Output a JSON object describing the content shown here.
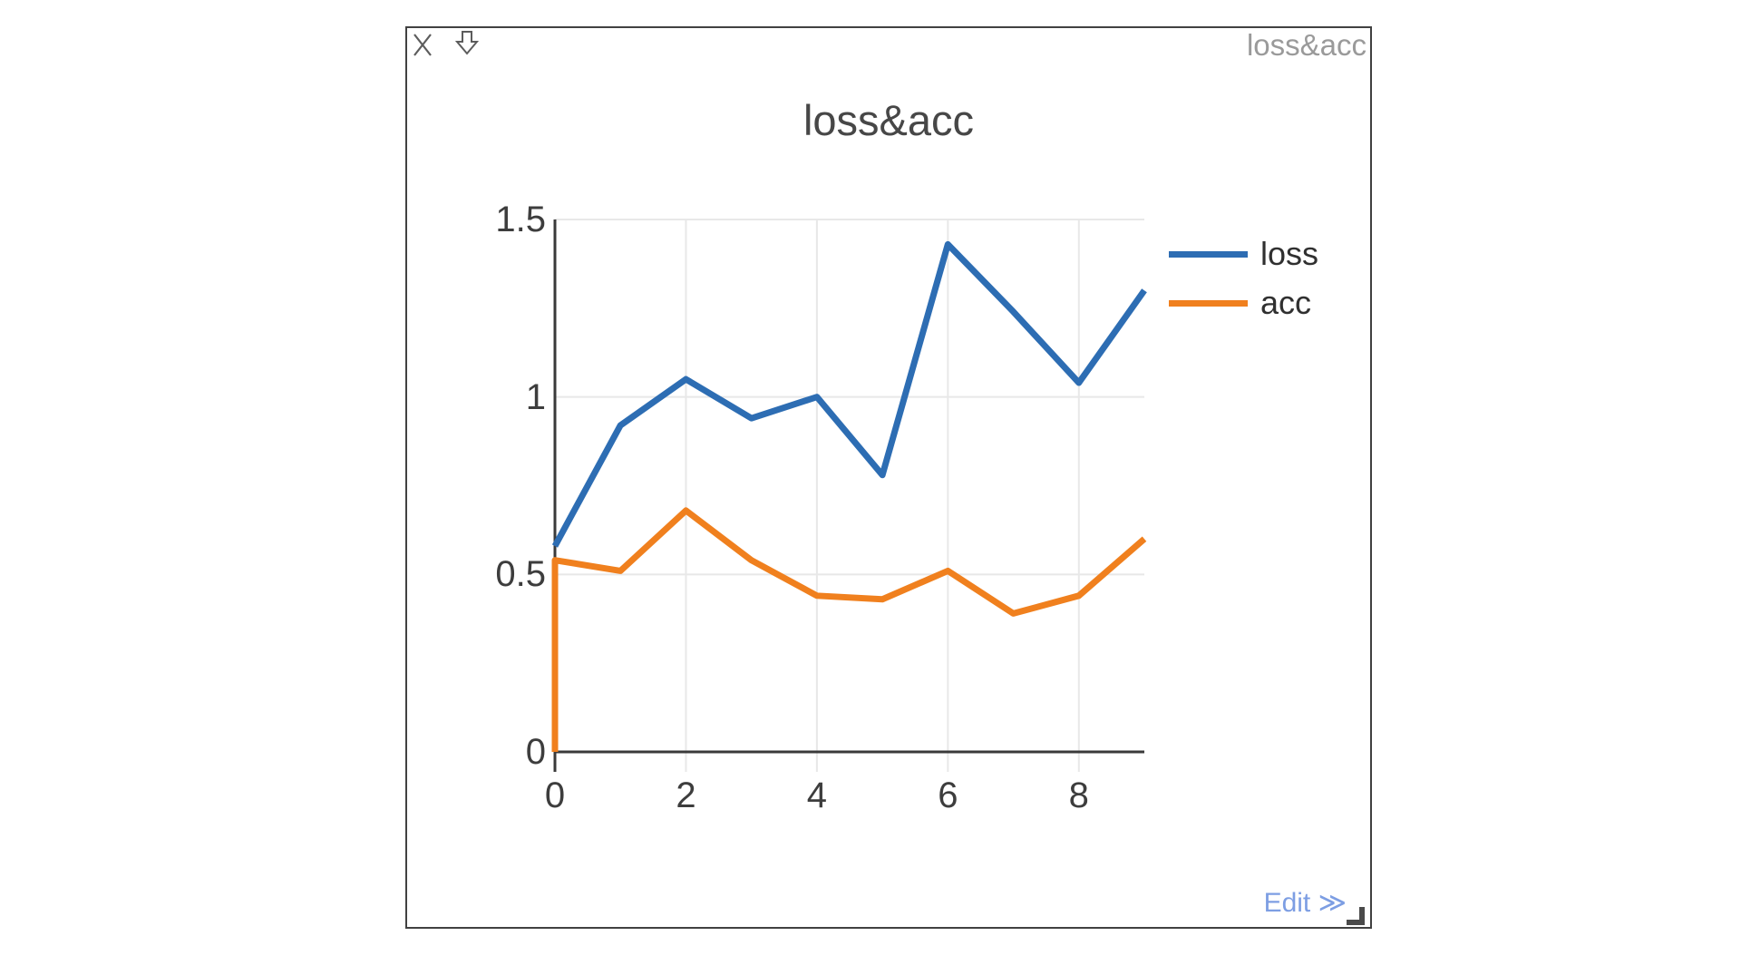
{
  "window": {
    "title": "loss&acc",
    "icons": {
      "close": "x",
      "download": "hollow-down-arrow",
      "resize": "corner-grip"
    }
  },
  "footer": {
    "edit_label": "Edit ≫"
  },
  "chart_data": {
    "type": "line",
    "title": "loss&acc",
    "xlabel": "",
    "ylabel": "",
    "xlim": [
      0,
      9
    ],
    "ylim": [
      0,
      1.5
    ],
    "x_ticks": [
      0,
      2,
      4,
      6,
      8
    ],
    "y_ticks": [
      0,
      0.5,
      1,
      1.5
    ],
    "grid": true,
    "legend_position": "right-of-plot",
    "grid_color": "#e8e8e8",
    "axis_color": "#3a3a3a",
    "series": [
      {
        "name": "loss",
        "color": "#2d6db3",
        "points": [
          [
            0,
            0.58
          ],
          [
            1,
            0.92
          ],
          [
            2,
            1.05
          ],
          [
            3,
            0.94
          ],
          [
            4,
            1.0
          ],
          [
            5,
            0.78
          ],
          [
            6,
            1.43
          ],
          [
            7,
            1.24
          ],
          [
            8,
            1.04
          ],
          [
            9,
            1.3
          ]
        ]
      },
      {
        "name": "acc",
        "color": "#f0801e",
        "points": [
          [
            0,
            0
          ],
          [
            0,
            0.54
          ],
          [
            1,
            0.51
          ],
          [
            2,
            0.68
          ],
          [
            3,
            0.54
          ],
          [
            4,
            0.44
          ],
          [
            5,
            0.43
          ],
          [
            6,
            0.51
          ],
          [
            7,
            0.39
          ],
          [
            8,
            0.44
          ],
          [
            9,
            0.6
          ]
        ]
      }
    ]
  }
}
